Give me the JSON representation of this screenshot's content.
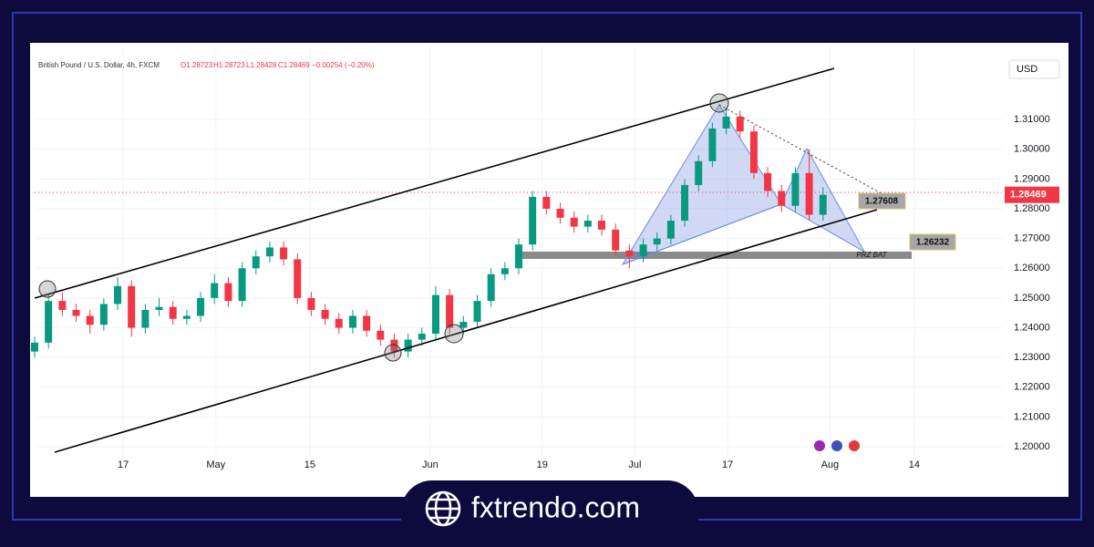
{
  "chart_data": {
    "type": "candlestick",
    "header": {
      "symbol": "British Pound / U.S. Dollar, 4h, FXCM",
      "open": "O1.28723",
      "high": "H1.28723",
      "low": "L1.28428",
      "close": "C1.28469",
      "change": "−0.00254 (−0.20%)"
    },
    "currency": "USD",
    "last_price": {
      "value": 1.28469,
      "label": "1.28469"
    },
    "annotations": {
      "level_b": "1.27608",
      "level_d": "1.26232",
      "zone": "PRZ BAT"
    },
    "brand": "fxtrendo.com",
    "up_color": "#089981",
    "down_color": "#f23645",
    "xlim": [
      0,
      70
    ],
    "xticks": [
      {
        "value": 6.4,
        "label": "17"
      },
      {
        "value": 13.1,
        "label": "May"
      },
      {
        "value": 19.9,
        "label": "15"
      },
      {
        "value": 28.6,
        "label": "Jun"
      },
      {
        "value": 36.7,
        "label": "19"
      },
      {
        "value": 43.4,
        "label": "Jul"
      },
      {
        "value": 50.1,
        "label": "17"
      },
      {
        "value": 57.5,
        "label": "Aug"
      },
      {
        "value": 63.6,
        "label": "14"
      }
    ],
    "ylim": [
      1.1902,
      1.3318
    ],
    "yticks": [
      {
        "value": 1.2,
        "label": "1.20000"
      },
      {
        "value": 1.21,
        "label": "1.21000"
      },
      {
        "value": 1.22,
        "label": "1.22000"
      },
      {
        "value": 1.23,
        "label": "1.23000"
      },
      {
        "value": 1.24,
        "label": "1.24000"
      },
      {
        "value": 1.25,
        "label": "1.25000"
      },
      {
        "value": 1.26,
        "label": "1.26000"
      },
      {
        "value": 1.27,
        "label": "1.27000"
      },
      {
        "value": 1.28,
        "label": "1.28000"
      },
      {
        "value": 1.29,
        "label": "1.29000"
      },
      {
        "value": 1.3,
        "label": "1.30000"
      },
      {
        "value": 1.31,
        "label": "1.31000"
      }
    ],
    "x": [
      0,
      1,
      2,
      3,
      4,
      5,
      6,
      7,
      8,
      9,
      10,
      11,
      12,
      13,
      14,
      15,
      16,
      17,
      18,
      19,
      20,
      21,
      22,
      23,
      24,
      25,
      26,
      27,
      28,
      29,
      30,
      31,
      32,
      33,
      34,
      35,
      36,
      37,
      38,
      39,
      40,
      41,
      42,
      43,
      44,
      45,
      46,
      47,
      48,
      49,
      50,
      51,
      52,
      53,
      54,
      55,
      56,
      57
    ],
    "ohlc": [
      [
        1.232,
        1.237,
        1.23,
        1.235
      ],
      [
        1.235,
        1.251,
        1.233,
        1.249
      ],
      [
        1.249,
        1.252,
        1.244,
        1.246
      ],
      [
        1.246,
        1.248,
        1.242,
        1.244
      ],
      [
        1.244,
        1.246,
        1.238,
        1.241
      ],
      [
        1.241,
        1.25,
        1.239,
        1.248
      ],
      [
        1.248,
        1.257,
        1.246,
        1.254
      ],
      [
        1.254,
        1.256,
        1.237,
        1.24
      ],
      [
        1.24,
        1.248,
        1.238,
        1.246
      ],
      [
        1.246,
        1.25,
        1.244,
        1.247
      ],
      [
        1.247,
        1.249,
        1.241,
        1.243
      ],
      [
        1.243,
        1.246,
        1.241,
        1.244
      ],
      [
        1.244,
        1.252,
        1.242,
        1.25
      ],
      [
        1.25,
        1.258,
        1.248,
        1.255
      ],
      [
        1.255,
        1.257,
        1.247,
        1.249
      ],
      [
        1.249,
        1.262,
        1.247,
        1.26
      ],
      [
        1.26,
        1.266,
        1.258,
        1.264
      ],
      [
        1.264,
        1.269,
        1.262,
        1.267
      ],
      [
        1.267,
        1.269,
        1.261,
        1.263
      ],
      [
        1.263,
        1.265,
        1.248,
        1.25
      ],
      [
        1.25,
        1.252,
        1.244,
        1.246
      ],
      [
        1.246,
        1.248,
        1.241,
        1.243
      ],
      [
        1.243,
        1.245,
        1.238,
        1.24
      ],
      [
        1.24,
        1.246,
        1.238,
        1.244
      ],
      [
        1.244,
        1.246,
        1.237,
        1.239
      ],
      [
        1.239,
        1.241,
        1.234,
        1.236
      ],
      [
        1.236,
        1.238,
        1.23,
        1.232
      ],
      [
        1.232,
        1.238,
        1.23,
        1.236
      ],
      [
        1.236,
        1.24,
        1.234,
        1.238
      ],
      [
        1.238,
        1.254,
        1.236,
        1.251
      ],
      [
        1.251,
        1.253,
        1.238,
        1.24
      ],
      [
        1.24,
        1.244,
        1.238,
        1.242
      ],
      [
        1.242,
        1.251,
        1.24,
        1.249
      ],
      [
        1.249,
        1.26,
        1.247,
        1.258
      ],
      [
        1.258,
        1.262,
        1.256,
        1.26
      ],
      [
        1.26,
        1.27,
        1.258,
        1.268
      ],
      [
        1.268,
        1.286,
        1.266,
        1.284
      ],
      [
        1.284,
        1.286,
        1.278,
        1.28
      ],
      [
        1.28,
        1.282,
        1.275,
        1.277
      ],
      [
        1.277,
        1.279,
        1.272,
        1.274
      ],
      [
        1.274,
        1.278,
        1.272,
        1.276
      ],
      [
        1.276,
        1.278,
        1.271,
        1.273
      ],
      [
        1.273,
        1.275,
        1.264,
        1.266
      ],
      [
        1.266,
        1.268,
        1.26,
        1.264
      ],
      [
        1.264,
        1.27,
        1.262,
        1.268
      ],
      [
        1.268,
        1.272,
        1.266,
        1.27
      ],
      [
        1.27,
        1.278,
        1.268,
        1.276
      ],
      [
        1.276,
        1.29,
        1.274,
        1.288
      ],
      [
        1.288,
        1.298,
        1.286,
        1.296
      ],
      [
        1.296,
        1.309,
        1.294,
        1.307
      ],
      [
        1.307,
        1.314,
        1.305,
        1.311
      ],
      [
        1.311,
        1.313,
        1.304,
        1.306
      ],
      [
        1.306,
        1.308,
        1.29,
        1.292
      ],
      [
        1.292,
        1.294,
        1.284,
        1.286
      ],
      [
        1.286,
        1.288,
        1.279,
        1.281
      ],
      [
        1.281,
        1.294,
        1.279,
        1.292
      ],
      [
        1.292,
        1.3,
        1.276,
        1.278
      ],
      [
        1.278,
        1.28723,
        1.276,
        1.28469
      ]
    ]
  }
}
